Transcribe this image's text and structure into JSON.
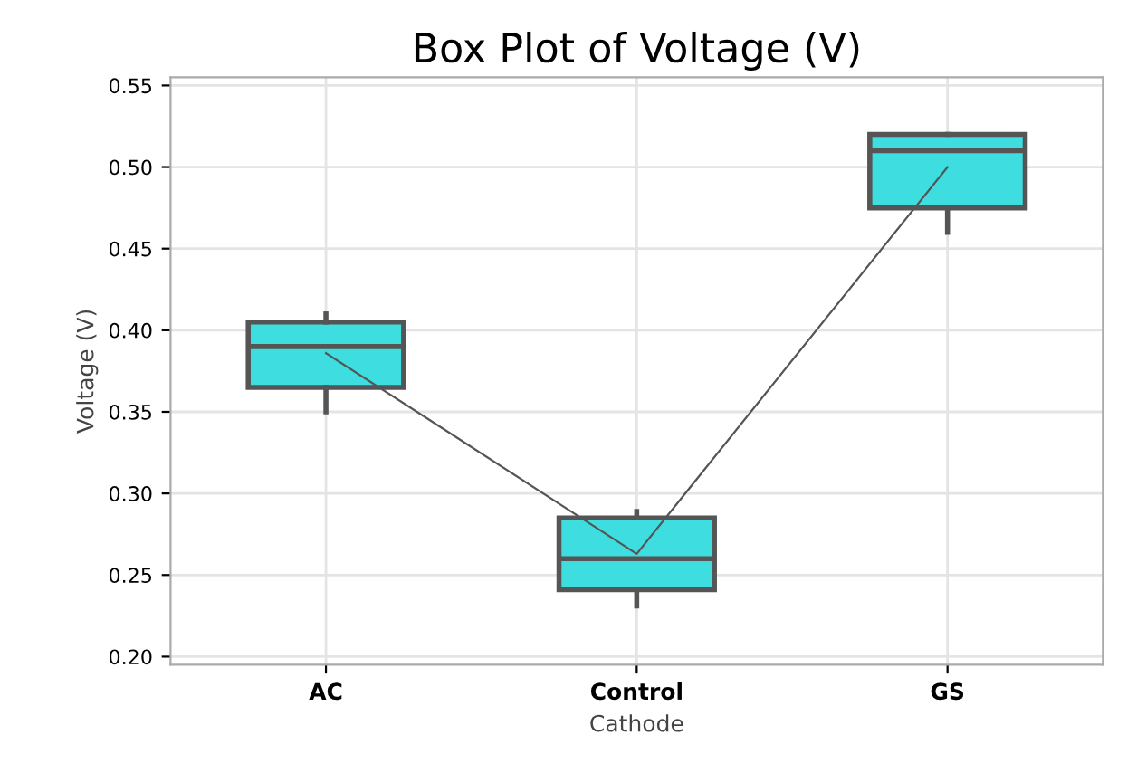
{
  "chart_data": {
    "type": "box",
    "title": "Box Plot of Voltage (V)",
    "xlabel": "Cathode",
    "ylabel": "Voltage (V)",
    "categories": [
      "AC",
      "Control",
      "GS"
    ],
    "boxes": [
      {
        "low": 0.35,
        "q1": 0.365,
        "median": 0.39,
        "q3": 0.405,
        "high": 0.41
      },
      {
        "low": 0.231,
        "q1": 0.241,
        "median": 0.26,
        "q3": 0.285,
        "high": 0.289
      },
      {
        "low": 0.46,
        "q1": 0.475,
        "median": 0.51,
        "q3": 0.52,
        "high": 0.52
      }
    ],
    "color": "#3ddde0",
    "series": [
      {
        "type": "line",
        "color": "#555555",
        "values": [
          0.386,
          0.263,
          0.5
        ]
      }
    ],
    "ylim": [
      0.195,
      0.555
    ],
    "yticks": [
      {
        "value": 0.2,
        "label": "0.20"
      },
      {
        "value": 0.25,
        "label": "0.25"
      },
      {
        "value": 0.3,
        "label": "0.30"
      },
      {
        "value": 0.35,
        "label": "0.35"
      },
      {
        "value": 0.4,
        "label": "0.40"
      },
      {
        "value": 0.45,
        "label": "0.45"
      },
      {
        "value": 0.5,
        "label": "0.50"
      },
      {
        "value": 0.55,
        "label": "0.55"
      }
    ],
    "grid": true
  }
}
